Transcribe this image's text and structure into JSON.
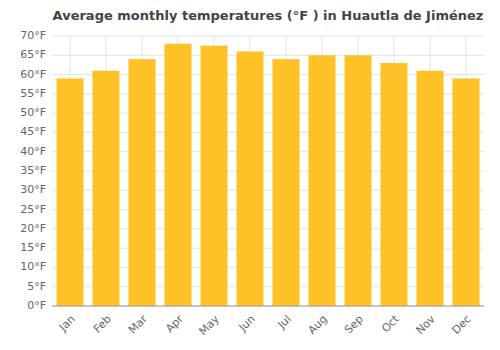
{
  "chart_data": {
    "type": "bar",
    "title": "Average monthly temperatures (°F ) in Huautla de Jiménez",
    "categories": [
      "Jan",
      "Feb",
      "Mar",
      "Apr",
      "May",
      "Jun",
      "Jul",
      "Aug",
      "Sep",
      "Oct",
      "Nov",
      "Dec"
    ],
    "values": [
      59,
      61,
      64,
      68,
      67.5,
      66,
      64,
      65,
      65,
      63,
      61,
      59
    ],
    "color": "#FFC125",
    "ylim": [
      0,
      70
    ],
    "yticks": [
      {
        "value": 0,
        "label": "0°F"
      },
      {
        "value": 5,
        "label": "5°F"
      },
      {
        "value": 10,
        "label": "10°F"
      },
      {
        "value": 15,
        "label": "15°F"
      },
      {
        "value": 20,
        "label": "20°F"
      },
      {
        "value": 25,
        "label": "25°F"
      },
      {
        "value": 30,
        "label": "30°F"
      },
      {
        "value": 35,
        "label": "35°F"
      },
      {
        "value": 40,
        "label": "40°F"
      },
      {
        "value": 45,
        "label": "45°F"
      },
      {
        "value": 50,
        "label": "50°F"
      },
      {
        "value": 55,
        "label": "55°F"
      },
      {
        "value": 60,
        "label": "60°F"
      },
      {
        "value": 65,
        "label": "65°F"
      },
      {
        "value": 70,
        "label": "70°F"
      }
    ],
    "grid": true
  }
}
